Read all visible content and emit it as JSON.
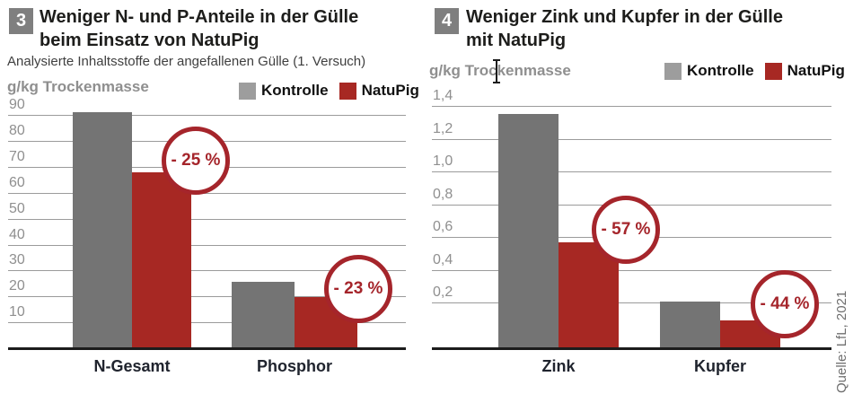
{
  "source_note": "Quelle: LfL, 2021",
  "icons": {
    "text_cursor_icon": "i-beam"
  },
  "colors": {
    "bar_gray": "#747474",
    "bar_red": "#A72823",
    "legend_gray": "#9D9D9D",
    "accent_red": "#A5252B",
    "title_black": "#1D1D1B",
    "axis_gray": "#8F8F8F",
    "category_dark": "#20242E",
    "badge_gray": "#7F7F7F",
    "baseline_black": "#1C1C1C",
    "source_gray": "#6F6F6F"
  },
  "chart_data": [
    {
      "type": "bar",
      "number": "3",
      "title": "Weniger N- und P-Anteile in der Gülle\nbeim Einsatz von NatuPig",
      "subtitle": "Analysierte Inhaltsstoffe der angefallenen Gülle (1. Versuch)",
      "unit_label": "g/kg Trockenmasse",
      "legend": [
        "Kontrolle",
        "NatuPig"
      ],
      "categories": [
        "N-Gesamt",
        "Phosphor"
      ],
      "series": [
        {
          "name": "Kontrolle",
          "color": "#747474",
          "values": [
            91,
            25.5
          ]
        },
        {
          "name": "NatuPig",
          "color": "#A72823",
          "values": [
            68,
            19.6
          ]
        }
      ],
      "yticks": [
        {
          "v": 90,
          "label": "90"
        },
        {
          "v": 80,
          "label": "80"
        },
        {
          "v": 70,
          "label": "70"
        },
        {
          "v": 60,
          "label": "60"
        },
        {
          "v": 50,
          "label": "50"
        },
        {
          "v": 40,
          "label": "40"
        },
        {
          "v": 30,
          "label": "30"
        },
        {
          "v": 20,
          "label": "20"
        },
        {
          "v": 10,
          "label": "10"
        }
      ],
      "ylim": [
        0,
        95
      ],
      "grid": true,
      "legend_position": "top-right",
      "annotations": [
        {
          "category": "N-Gesamt",
          "series": "NatuPig",
          "label": "- 25 %"
        },
        {
          "category": "Phosphor",
          "series": "NatuPig",
          "label": "- 23 %"
        }
      ]
    },
    {
      "type": "bar",
      "number": "4",
      "title": "Weniger Zink und Kupfer in der Gülle\nmit NatuPig",
      "subtitle": "",
      "unit_label": "g/kg Trockenmasse",
      "legend": [
        "Kontrolle",
        "NatuPig"
      ],
      "categories": [
        "Zink",
        "Kupfer"
      ],
      "series": [
        {
          "name": "Kontrolle",
          "color": "#747474",
          "values": [
            1.35,
            0.21
          ]
        },
        {
          "name": "NatuPig",
          "color": "#A72823",
          "values": [
            0.57,
            0.12
          ]
        }
      ],
      "yticks": [
        {
          "v": 1.4,
          "label": "1,4"
        },
        {
          "v": 1.2,
          "label": "1,2"
        },
        {
          "v": 1.0,
          "label": "1,0"
        },
        {
          "v": 0.8,
          "label": "0,8"
        },
        {
          "v": 0.6,
          "label": "0,6"
        },
        {
          "v": 0.4,
          "label": "0,4"
        },
        {
          "v": 0.2,
          "label": "0,2"
        }
      ],
      "ylim": [
        0,
        1.45
      ],
      "grid": true,
      "legend_position": "top-right",
      "annotations": [
        {
          "category": "Zink",
          "series": "NatuPig",
          "label": "- 57 %"
        },
        {
          "category": "Kupfer",
          "series": "NatuPig",
          "label": "- 44 %"
        }
      ]
    }
  ]
}
